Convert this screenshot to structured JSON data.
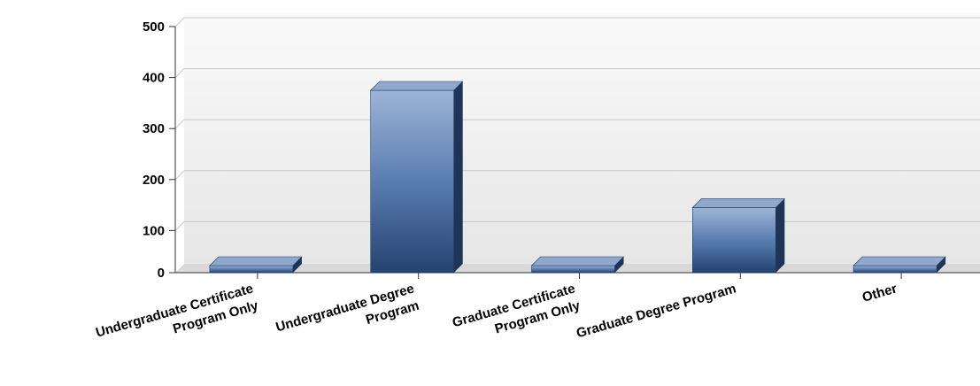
{
  "chart_data": {
    "type": "bar",
    "categories": [
      [
        "Undergraduate Certificate",
        "Program Only"
      ],
      [
        "Undergraduate Degree",
        "Program"
      ],
      [
        "Graduate Certificate",
        "Program Only"
      ],
      [
        "Graduate Degree Program"
      ],
      [
        "Other"
      ]
    ],
    "values": [
      0,
      375,
      0,
      145,
      0
    ],
    "ylim": [
      0,
      500
    ],
    "yticks": [
      "0",
      "100",
      "200",
      "300",
      "400",
      "500"
    ],
    "grid": true,
    "legend": "none",
    "colors": {
      "bar_top_light": "#9db4d6",
      "bar_mid": "#5a7db0",
      "bar_bottom": "#24436f",
      "bar_side": "#1e3458",
      "bar_cap": "#8fa8cc"
    }
  }
}
